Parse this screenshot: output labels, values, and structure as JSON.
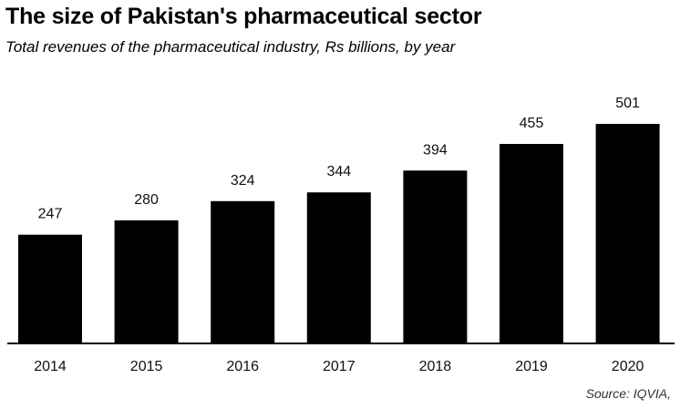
{
  "header": {
    "title": "The size of Pakistan's pharmaceutical sector",
    "subtitle": "Total revenues of the pharmaceutical industry, Rs billions, by year"
  },
  "footer": {
    "source": "Source: IQVIA,"
  },
  "colors": {
    "bar": "#000000",
    "axis": "#000000"
  },
  "chart_data": {
    "type": "bar",
    "title": "The size of Pakistan's pharmaceutical sector",
    "subtitle": "Total revenues of the pharmaceutical industry, Rs billions, by year",
    "categories": [
      "2014",
      "2015",
      "2016",
      "2017",
      "2018",
      "2019",
      "2020"
    ],
    "values": [
      247,
      280,
      324,
      344,
      394,
      455,
      501
    ],
    "data_labels": [
      "247",
      "280",
      "324",
      "344",
      "394",
      "455",
      "501"
    ],
    "xlabel": "",
    "ylabel": "",
    "ylim": [
      0,
      501
    ],
    "grid": false,
    "legend": "none"
  }
}
